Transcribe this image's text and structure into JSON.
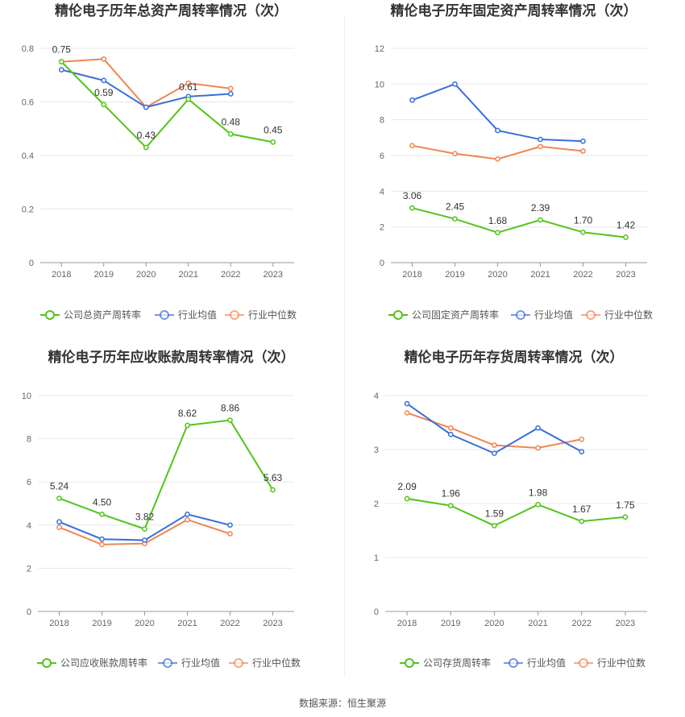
{
  "source": "数据来源：恒生聚源",
  "colors": {
    "company": "#52c41a",
    "avg": "#3a6fdb",
    "median": "#f08552",
    "grid": "#e8e8e8",
    "axis": "#999999"
  },
  "chart_data": [
    {
      "type": "line",
      "title": "精伦电子历年总资产周转率情况（次）",
      "categories": [
        "2018",
        "2019",
        "2020",
        "2021",
        "2022",
        "2023"
      ],
      "ylim": [
        0,
        0.8
      ],
      "yticks": [
        "0",
        "0.2",
        "0.4",
        "0.6",
        "0.8"
      ],
      "series": [
        {
          "name": "公司总资产周转率",
          "values": [
            0.75,
            0.59,
            0.43,
            0.61,
            0.48,
            0.45
          ],
          "labels": [
            "0.75",
            "0.59",
            "0.43",
            "0.61",
            "0.48",
            "0.45"
          ]
        },
        {
          "name": "行业均值",
          "values": [
            0.72,
            0.68,
            0.58,
            0.62,
            0.63,
            null
          ]
        },
        {
          "name": "行业中位数",
          "values": [
            0.75,
            0.76,
            0.58,
            0.67,
            0.65,
            null
          ]
        }
      ]
    },
    {
      "type": "line",
      "title": "精伦电子历年固定资产周转率情况（次）",
      "categories": [
        "2018",
        "2019",
        "2020",
        "2021",
        "2022",
        "2023"
      ],
      "ylim": [
        0,
        12
      ],
      "yticks": [
        "0",
        "2",
        "4",
        "6",
        "8",
        "10",
        "12"
      ],
      "series": [
        {
          "name": "公司固定资产周转率",
          "values": [
            3.06,
            2.45,
            1.68,
            2.39,
            1.7,
            1.42
          ],
          "labels": [
            "3.06",
            "2.45",
            "1.68",
            "2.39",
            "1.70",
            "1.42"
          ]
        },
        {
          "name": "行业均值",
          "values": [
            9.1,
            10.0,
            7.4,
            6.9,
            6.8,
            null
          ]
        },
        {
          "name": "行业中位数",
          "values": [
            6.55,
            6.1,
            5.8,
            6.5,
            6.25,
            null
          ]
        }
      ]
    },
    {
      "type": "line",
      "title": "精伦电子历年应收账款周转率情况（次）",
      "categories": [
        "2018",
        "2019",
        "2020",
        "2021",
        "2022",
        "2023"
      ],
      "ylim": [
        0,
        10
      ],
      "yticks": [
        "0",
        "2",
        "4",
        "6",
        "8",
        "10"
      ],
      "series": [
        {
          "name": "公司应收账款周转率",
          "values": [
            5.24,
            4.5,
            3.82,
            8.62,
            8.86,
            5.63
          ],
          "labels": [
            "5.24",
            "4.50",
            "3.82",
            "8.62",
            "8.86",
            "5.63"
          ]
        },
        {
          "name": "行业均值",
          "values": [
            4.15,
            3.35,
            3.3,
            4.5,
            4.0,
            null
          ]
        },
        {
          "name": "行业中位数",
          "values": [
            3.9,
            3.1,
            3.15,
            4.25,
            3.6,
            null
          ]
        }
      ]
    },
    {
      "type": "line",
      "title": "精伦电子历年存货周转率情况（次）",
      "categories": [
        "2018",
        "2019",
        "2020",
        "2021",
        "2022",
        "2023"
      ],
      "ylim": [
        0,
        4
      ],
      "yticks": [
        "0",
        "1",
        "2",
        "3",
        "4"
      ],
      "series": [
        {
          "name": "公司存货周转率",
          "values": [
            2.09,
            1.96,
            1.59,
            1.98,
            1.67,
            1.75
          ],
          "labels": [
            "2.09",
            "1.96",
            "1.59",
            "1.98",
            "1.67",
            "1.75"
          ]
        },
        {
          "name": "行业均值",
          "values": [
            3.85,
            3.28,
            2.93,
            3.4,
            2.96,
            null
          ]
        },
        {
          "name": "行业中位数",
          "values": [
            3.68,
            3.4,
            3.08,
            3.03,
            3.19,
            null
          ]
        }
      ]
    }
  ]
}
